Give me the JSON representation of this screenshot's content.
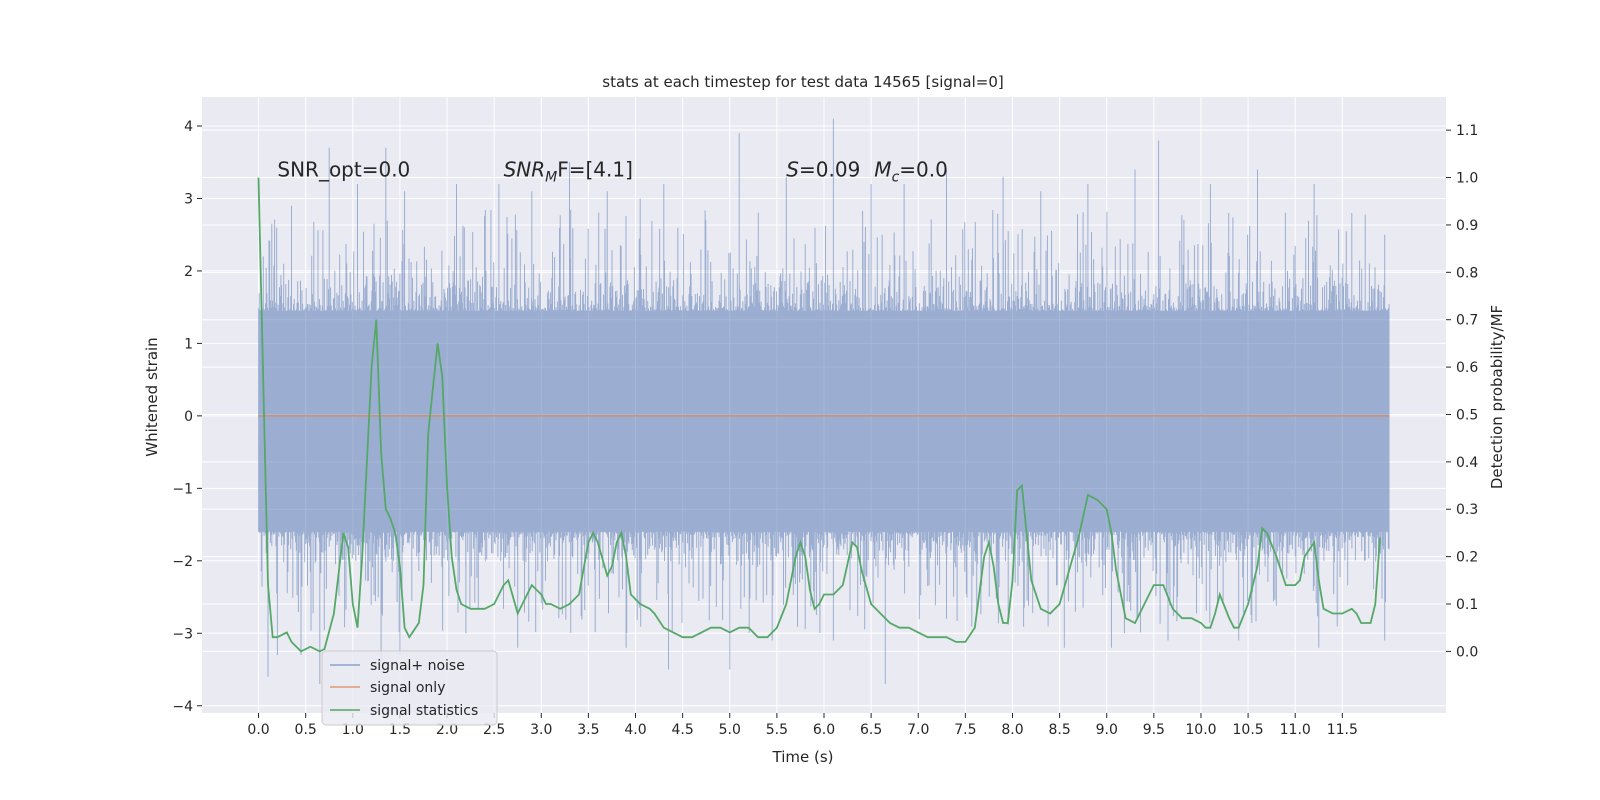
{
  "chart_data": {
    "type": "line",
    "title": "stats at each timestep for test data 14565 [signal=0]",
    "xlabel": "Time (s)",
    "ylabel": "Whitened strain",
    "ylabel_right": "Detection probability/MF",
    "xlim": [
      -0.6,
      12.6
    ],
    "ylim": [
      -4.1,
      4.4
    ],
    "ylim_right": [
      -0.13,
      1.17
    ],
    "x_ticks": [
      0.0,
      0.5,
      1.0,
      1.5,
      2.0,
      2.5,
      3.0,
      3.5,
      4.0,
      4.5,
      5.0,
      5.5,
      6.0,
      6.5,
      7.0,
      7.5,
      8.0,
      8.5,
      9.0,
      9.5,
      10.0,
      10.5,
      11.0,
      11.5
    ],
    "x_tick_labels": [
      "0.0",
      "0.5",
      "1.0",
      "1.5",
      "2.0",
      "2.5",
      "3.0",
      "3.5",
      "4.0",
      "4.5",
      "5.0",
      "5.5",
      "6.0",
      "6.5",
      "7.0",
      "7.5",
      "8.0",
      "8.5",
      "9.0",
      "9.5",
      "10.0",
      "10.5",
      "11.0",
      "11.5"
    ],
    "y_ticks": [
      -4,
      -3,
      -2,
      -1,
      0,
      1,
      2,
      3,
      4
    ],
    "y_tick_labels": [
      "−4",
      "−3",
      "−2",
      "−1",
      "0",
      "1",
      "2",
      "3",
      "4"
    ],
    "y_right_ticks": [
      0.0,
      0.1,
      0.2,
      0.3,
      0.4,
      0.5,
      0.6,
      0.7,
      0.8,
      0.9,
      1.0,
      1.1
    ],
    "y_right_tick_labels": [
      "0.0",
      "0.1",
      "0.2",
      "0.3",
      "0.4",
      "0.5",
      "0.6",
      "0.7",
      "0.8",
      "0.9",
      "1.0",
      "1.1"
    ],
    "grid": true,
    "legend_position": "lower-left",
    "annotations": [
      {
        "text": "SNR_opt=0.0",
        "x": 0.2,
        "y": 3.3
      },
      {
        "text": "SNR",
        "sub": "M",
        "rest": "F=[4.1]",
        "x": 2.6,
        "y": 3.3
      },
      {
        "text": "S",
        "rest": "=0.09",
        "text2": "M",
        "sub2": "c",
        "rest2": "=0.0",
        "x": 5.6,
        "y": 3.3
      }
    ],
    "series": [
      {
        "name": "signal+ noise",
        "axis": "left",
        "color": "#4c72b0",
        "style": "dense-noise",
        "x_range": [
          0.0,
          12.0
        ],
        "envelope_upper": 1.45,
        "envelope_lower": -1.6,
        "spike_peaks": [
          {
            "x": 0.05,
            "y": 2.2
          },
          {
            "x": 0.35,
            "y": 2.9
          },
          {
            "x": 0.75,
            "y": 3.7
          },
          {
            "x": 1.05,
            "y": 3.2
          },
          {
            "x": 1.35,
            "y": 3.7
          },
          {
            "x": 1.55,
            "y": 3.1
          },
          {
            "x": 2.1,
            "y": 3.2
          },
          {
            "x": 2.55,
            "y": 3.2
          },
          {
            "x": 2.9,
            "y": 3.1
          },
          {
            "x": 3.3,
            "y": 3.5
          },
          {
            "x": 3.7,
            "y": 3.1
          },
          {
            "x": 4.05,
            "y": 3.0
          },
          {
            "x": 4.3,
            "y": 3.2
          },
          {
            "x": 5.1,
            "y": 3.9
          },
          {
            "x": 5.6,
            "y": 3.3
          },
          {
            "x": 6.1,
            "y": 4.1
          },
          {
            "x": 6.5,
            "y": 3.2
          },
          {
            "x": 6.85,
            "y": 3.2
          },
          {
            "x": 7.3,
            "y": 3.4
          },
          {
            "x": 7.9,
            "y": 3.3
          },
          {
            "x": 8.3,
            "y": 3.1
          },
          {
            "x": 8.8,
            "y": 3.2
          },
          {
            "x": 9.3,
            "y": 3.4
          },
          {
            "x": 9.55,
            "y": 3.8
          },
          {
            "x": 10.1,
            "y": 3.2
          },
          {
            "x": 10.6,
            "y": 3.4
          },
          {
            "x": 11.2,
            "y": 3.2
          },
          {
            "x": 11.6,
            "y": 2.8
          },
          {
            "x": 11.95,
            "y": 2.5
          }
        ],
        "trough_peaks": [
          {
            "x": 0.1,
            "y": -3.6
          },
          {
            "x": 0.2,
            "y": -3.3
          },
          {
            "x": 0.45,
            "y": -3.3
          },
          {
            "x": 0.65,
            "y": -3.7
          },
          {
            "x": 1.3,
            "y": -3.4
          },
          {
            "x": 1.5,
            "y": -3.3
          },
          {
            "x": 2.2,
            "y": -3.0
          },
          {
            "x": 2.75,
            "y": -3.2
          },
          {
            "x": 3.9,
            "y": -3.2
          },
          {
            "x": 4.35,
            "y": -3.5
          },
          {
            "x": 5.0,
            "y": -3.5
          },
          {
            "x": 5.45,
            "y": -3.1
          },
          {
            "x": 6.1,
            "y": -3.1
          },
          {
            "x": 6.65,
            "y": -3.7
          },
          {
            "x": 7.3,
            "y": -2.8
          },
          {
            "x": 8.55,
            "y": -3.2
          },
          {
            "x": 9.05,
            "y": -3.2
          },
          {
            "x": 9.65,
            "y": -3.1
          },
          {
            "x": 10.4,
            "y": -3.1
          },
          {
            "x": 11.25,
            "y": -3.2
          },
          {
            "x": 11.95,
            "y": -3.1
          }
        ]
      },
      {
        "name": "signal only",
        "axis": "left",
        "color": "#dd8452",
        "x": [
          0.0,
          12.0
        ],
        "y": [
          0.0,
          0.0
        ]
      },
      {
        "name": "signal statistics",
        "axis": "right",
        "color": "#55a868",
        "x": [
          0.0,
          0.1,
          0.15,
          0.2,
          0.3,
          0.35,
          0.45,
          0.55,
          0.65,
          0.7,
          0.8,
          0.9,
          0.95,
          1.0,
          1.05,
          1.1,
          1.2,
          1.25,
          1.3,
          1.35,
          1.4,
          1.45,
          1.5,
          1.55,
          1.6,
          1.7,
          1.75,
          1.8,
          1.9,
          1.95,
          2.0,
          2.05,
          2.1,
          2.15,
          2.25,
          2.3,
          2.4,
          2.5,
          2.6,
          2.65,
          2.75,
          2.8,
          2.9,
          3.0,
          3.05,
          3.1,
          3.2,
          3.3,
          3.4,
          3.5,
          3.55,
          3.6,
          3.7,
          3.75,
          3.8,
          3.85,
          3.9,
          3.95,
          4.0,
          4.05,
          4.15,
          4.2,
          4.3,
          4.4,
          4.5,
          4.6,
          4.7,
          4.8,
          4.9,
          5.0,
          5.1,
          5.2,
          5.3,
          5.4,
          5.5,
          5.6,
          5.7,
          5.75,
          5.8,
          5.85,
          5.9,
          5.95,
          6.0,
          6.1,
          6.2,
          6.3,
          6.35,
          6.4,
          6.5,
          6.6,
          6.7,
          6.8,
          6.9,
          7.0,
          7.1,
          7.2,
          7.3,
          7.4,
          7.5,
          7.6,
          7.7,
          7.75,
          7.8,
          7.85,
          7.9,
          7.95,
          8.0,
          8.05,
          8.1,
          8.15,
          8.2,
          8.3,
          8.4,
          8.5,
          8.6,
          8.7,
          8.8,
          8.9,
          9.0,
          9.05,
          9.1,
          9.2,
          9.3,
          9.4,
          9.5,
          9.6,
          9.7,
          9.8,
          9.9,
          10.0,
          10.05,
          10.1,
          10.15,
          10.2,
          10.3,
          10.35,
          10.4,
          10.5,
          10.6,
          10.65,
          10.7,
          10.8,
          10.9,
          11.0,
          11.05,
          11.1,
          11.2,
          11.25,
          11.3,
          11.4,
          11.5,
          11.6,
          11.65,
          11.7,
          11.8,
          11.85,
          11.9
        ],
        "y": [
          1.0,
          0.14,
          0.03,
          0.03,
          0.04,
          0.02,
          0.0,
          0.01,
          0.0,
          0.005,
          0.08,
          0.25,
          0.22,
          0.1,
          0.05,
          0.2,
          0.6,
          0.7,
          0.42,
          0.3,
          0.28,
          0.25,
          0.18,
          0.05,
          0.03,
          0.06,
          0.14,
          0.46,
          0.65,
          0.58,
          0.35,
          0.2,
          0.13,
          0.1,
          0.09,
          0.09,
          0.09,
          0.1,
          0.14,
          0.15,
          0.08,
          0.1,
          0.14,
          0.12,
          0.1,
          0.1,
          0.09,
          0.1,
          0.12,
          0.23,
          0.25,
          0.23,
          0.16,
          0.18,
          0.23,
          0.25,
          0.2,
          0.12,
          0.11,
          0.1,
          0.09,
          0.08,
          0.05,
          0.04,
          0.03,
          0.03,
          0.04,
          0.05,
          0.05,
          0.04,
          0.05,
          0.05,
          0.03,
          0.03,
          0.05,
          0.1,
          0.2,
          0.23,
          0.2,
          0.13,
          0.09,
          0.1,
          0.12,
          0.12,
          0.14,
          0.23,
          0.22,
          0.17,
          0.1,
          0.08,
          0.06,
          0.05,
          0.05,
          0.04,
          0.03,
          0.03,
          0.03,
          0.02,
          0.02,
          0.05,
          0.2,
          0.23,
          0.18,
          0.1,
          0.06,
          0.06,
          0.15,
          0.34,
          0.35,
          0.25,
          0.15,
          0.09,
          0.08,
          0.1,
          0.17,
          0.24,
          0.33,
          0.32,
          0.3,
          0.25,
          0.17,
          0.07,
          0.06,
          0.1,
          0.14,
          0.14,
          0.09,
          0.07,
          0.07,
          0.06,
          0.05,
          0.05,
          0.08,
          0.12,
          0.07,
          0.05,
          0.05,
          0.1,
          0.18,
          0.26,
          0.25,
          0.2,
          0.14,
          0.14,
          0.15,
          0.2,
          0.23,
          0.15,
          0.09,
          0.08,
          0.08,
          0.09,
          0.08,
          0.06,
          0.06,
          0.1,
          0.24
        ]
      }
    ]
  }
}
